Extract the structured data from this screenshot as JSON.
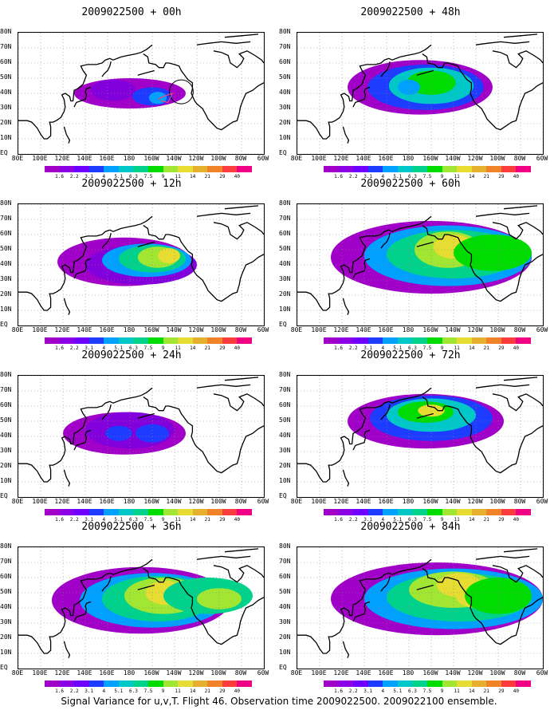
{
  "panels": [
    {
      "title": "2009022500 + 00h",
      "level": 0
    },
    {
      "title": "2009022500 + 48h",
      "level": 4
    },
    {
      "title": "2009022500 + 12h",
      "level": 1
    },
    {
      "title": "2009022500 + 60h",
      "level": 5
    },
    {
      "title": "2009022500 + 24h",
      "level": 2
    },
    {
      "title": "2009022500 + 72h",
      "level": 6
    },
    {
      "title": "2009022500 + 36h",
      "level": 3
    },
    {
      "title": "2009022500 + 84h",
      "level": 7
    }
  ],
  "lat_labels": [
    "80N",
    "70N",
    "60N",
    "50N",
    "40N",
    "30N",
    "20N",
    "10N",
    "EQ"
  ],
  "lon_labels": [
    "80E",
    "100E",
    "120E",
    "140E",
    "160E",
    "180",
    "160W",
    "140W",
    "120W",
    "100W",
    "80W",
    "60W"
  ],
  "colorbar": {
    "labels": [
      "1.6",
      "2.2",
      "3.1",
      "4",
      "5.1",
      "6.3",
      "7.5",
      "9",
      "11",
      "14",
      "21",
      "29",
      "40"
    ],
    "colors": [
      "#a000c8",
      "#8200dc",
      "#1e3cff",
      "#00a0ff",
      "#00c8c8",
      "#00d28c",
      "#00dc00",
      "#a0e632",
      "#e6dc32",
      "#e6af2d",
      "#f08228",
      "#fa3c3c",
      "#f00082"
    ]
  },
  "footer": "Signal Variance for u,v,T. Flight 46. Observation time 2009022500. 2009022100 ensemble."
}
